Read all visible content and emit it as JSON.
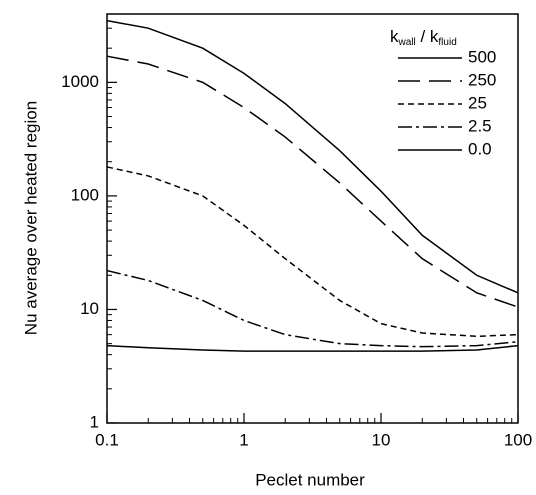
{
  "chart_data": {
    "type": "line",
    "xlabel": "Peclet number",
    "ylabel": "Nu average over heated region",
    "legend_title": [
      "k",
      "wall",
      " / k",
      "fluid"
    ],
    "legend": "upper right",
    "xscale": "log",
    "yscale": "log",
    "xlim": [
      0.1,
      100
    ],
    "ylim": [
      1,
      4000
    ],
    "xticks": [
      0.1,
      1,
      10,
      100
    ],
    "yticks": [
      1,
      10,
      100,
      1000
    ],
    "xminorticks": [
      0.2,
      0.3,
      0.4,
      0.5,
      0.6,
      0.7,
      0.8,
      0.9,
      2,
      3,
      4,
      5,
      6,
      7,
      8,
      9,
      20,
      30,
      40,
      50,
      60,
      70,
      80,
      90
    ],
    "yminorticks": [
      2,
      3,
      4,
      5,
      6,
      7,
      8,
      9,
      20,
      30,
      40,
      50,
      60,
      70,
      80,
      90,
      200,
      300,
      400,
      500,
      600,
      700,
      800,
      900,
      2000,
      3000
    ],
    "x": [
      0.1,
      0.2,
      0.5,
      1,
      2,
      5,
      10,
      20,
      50,
      100
    ],
    "series": [
      {
        "name": "500",
        "color": "#000000",
        "dash": "none",
        "values": [
          3500,
          3000,
          2000,
          1200,
          650,
          250,
          110,
          45,
          20,
          14
        ]
      },
      {
        "name": "250",
        "color": "#000000",
        "dash": "22 9",
        "values": [
          1700,
          1450,
          1000,
          600,
          330,
          130,
          60,
          28,
          14,
          10.5
        ]
      },
      {
        "name": "25",
        "color": "#000000",
        "dash": "6 4",
        "values": [
          180,
          150,
          100,
          55,
          28,
          12,
          7.5,
          6.2,
          5.8,
          6
        ]
      },
      {
        "name": "2.5",
        "color": "#000000",
        "dash": "14 4 3 4",
        "values": [
          22,
          18,
          12,
          8,
          6,
          5,
          4.8,
          4.7,
          4.8,
          5.2
        ]
      },
      {
        "name": "0.0",
        "color": "#000000",
        "dash": "none",
        "values": [
          4.8,
          4.6,
          4.4,
          4.3,
          4.3,
          4.3,
          4.3,
          4.3,
          4.4,
          4.8
        ]
      }
    ]
  }
}
